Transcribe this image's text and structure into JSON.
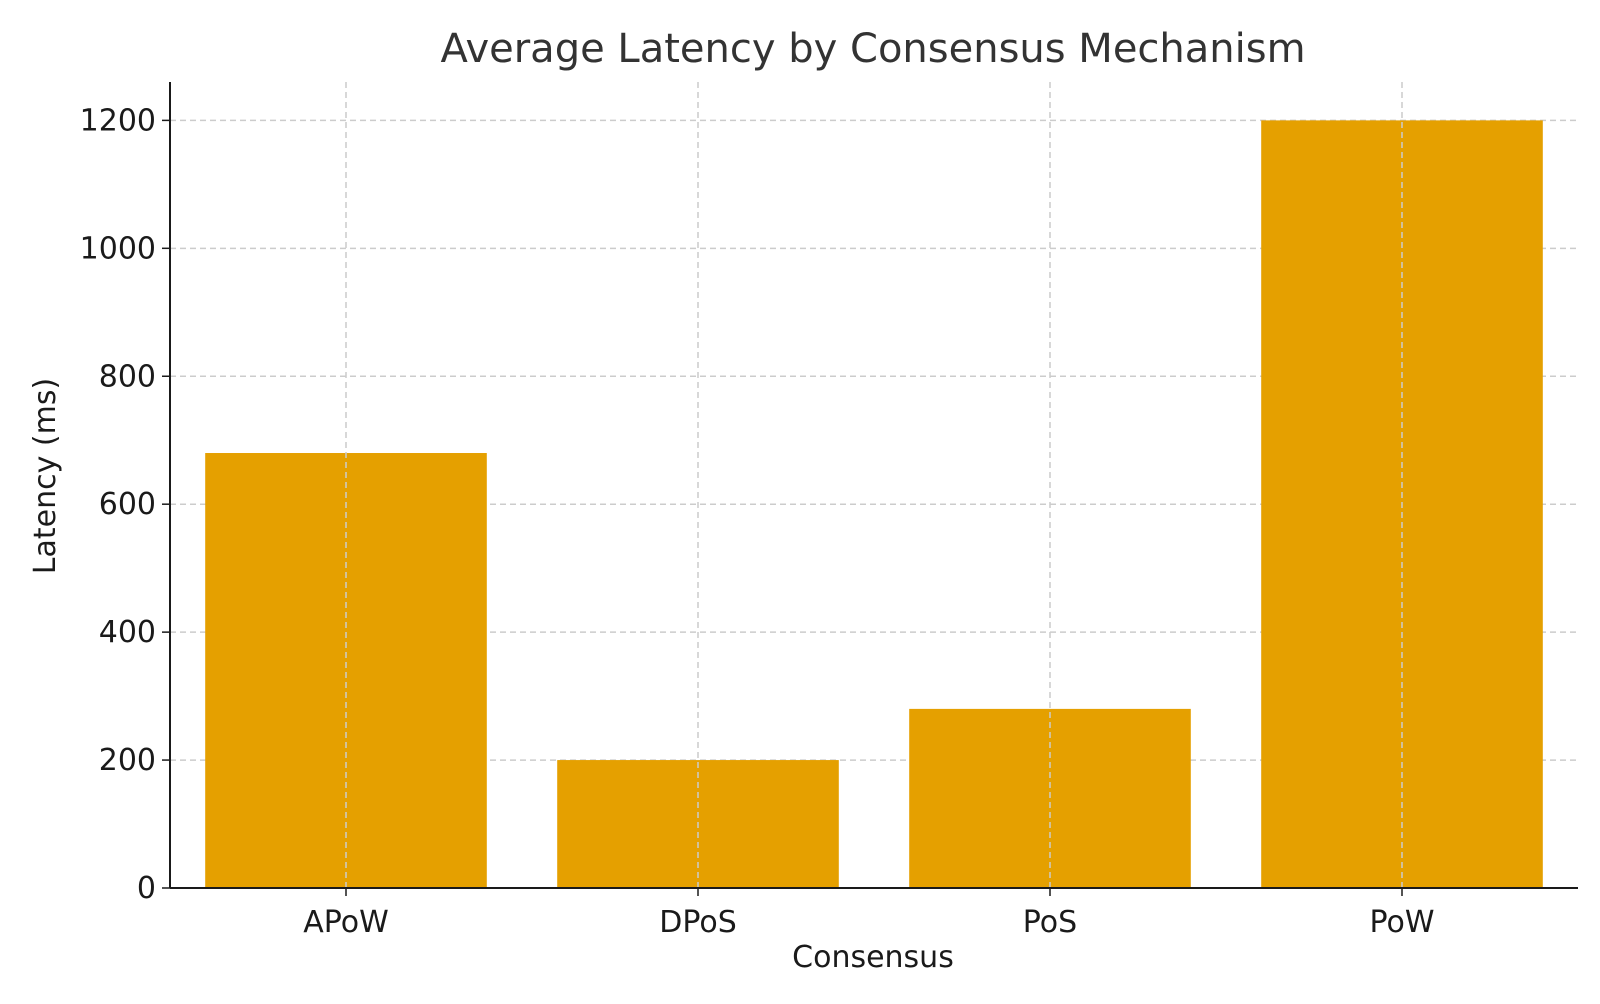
{
  "chart_data": {
    "type": "bar",
    "title": "Average Latency by Consensus Mechanism",
    "xlabel": "Consensus",
    "ylabel": "Latency (ms)",
    "categories": [
      "APoW",
      "DPoS",
      "PoS",
      "PoW"
    ],
    "values": [
      680,
      200,
      280,
      1200
    ],
    "ylim": [
      0,
      1260
    ],
    "yticks": [
      0,
      200,
      400,
      600,
      800,
      1000,
      1200
    ],
    "grid": true,
    "bar_color": "#E5A000",
    "text_color": "#1a1a1a",
    "title_color": "#333333",
    "grid_color": "#cccccc"
  }
}
